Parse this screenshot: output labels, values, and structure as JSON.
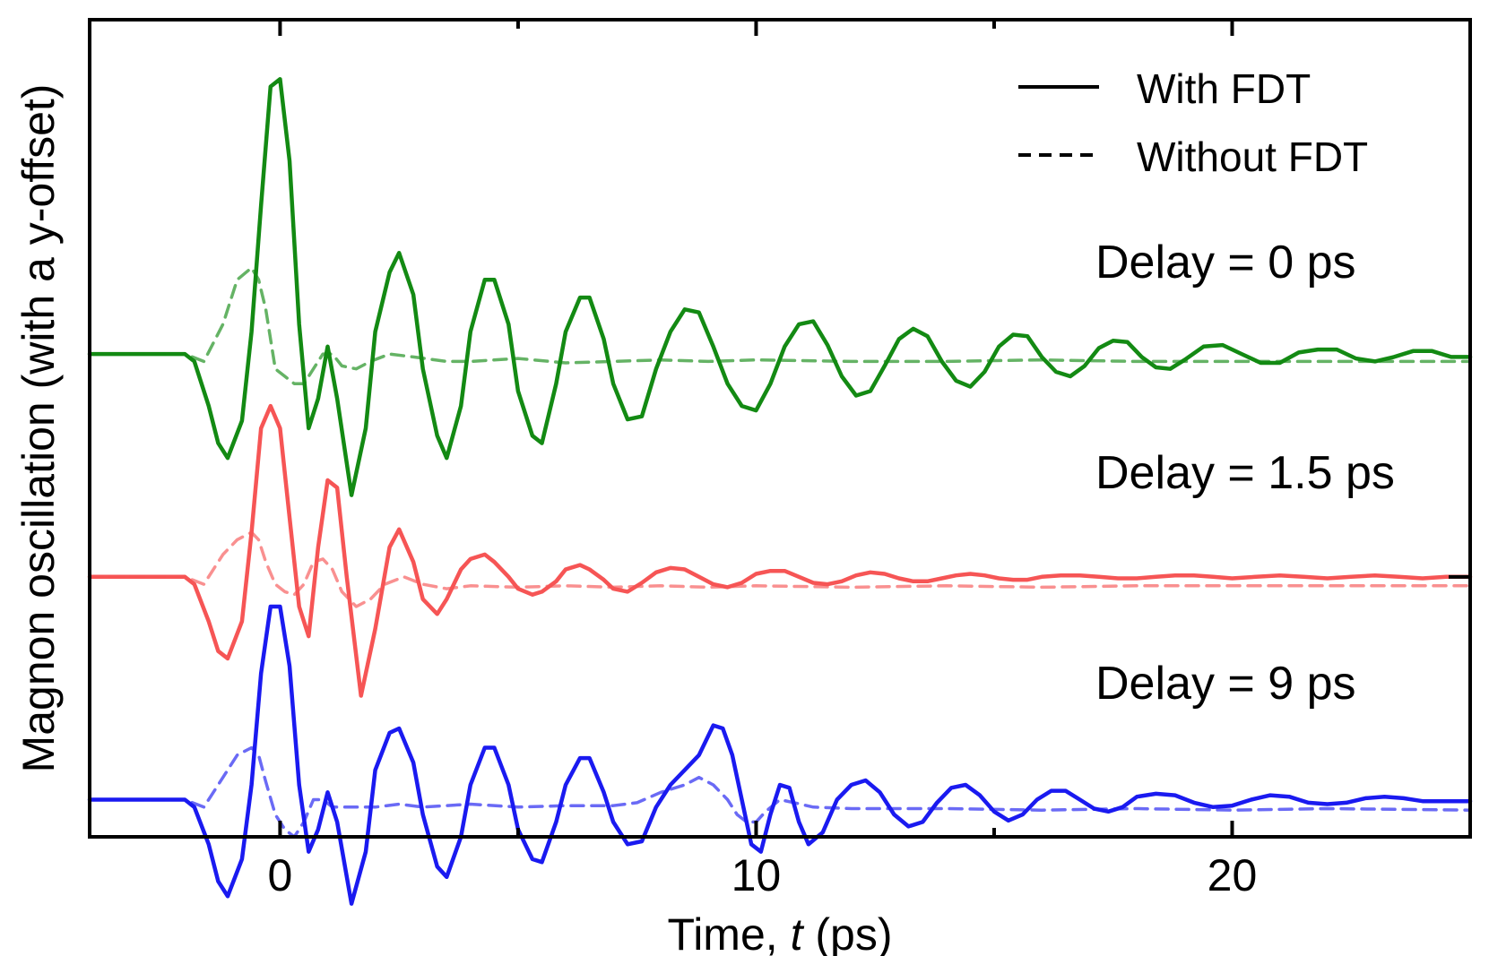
{
  "chart_data": {
    "type": "line",
    "title": "",
    "xlabel": "Time, ",
    "xlabel_var": "t",
    "xlabel_unit": " (ps)",
    "ylabel": "Magnon oscillation (with a y-offset)",
    "xlim": [
      -4,
      25
    ],
    "ylim": [
      -3.25,
      2.25
    ],
    "x_ticks": [
      0,
      10,
      20
    ],
    "x_tick_labels": [
      "0",
      "10",
      "20"
    ],
    "minor_x_ticks": [
      5,
      15
    ],
    "grid": false,
    "legend_position": "top-right",
    "legend": [
      {
        "label": "With FDT",
        "style": "solid"
      },
      {
        "label": "Without FDT",
        "style": "dashed"
      }
    ],
    "colors": {
      "delay_0": "#138a13",
      "delay_1_5": "#f65555",
      "delay_9": "#1a1af0"
    },
    "series": [
      {
        "group": "Delay = 0 ps",
        "style": "solid",
        "offset": 0.0,
        "delay": 0,
        "x": [
          -4,
          -2,
          -1.8,
          -1.5,
          -1.3,
          -1.1,
          -0.8,
          -0.6,
          -0.4,
          -0.2,
          0,
          0.2,
          0.4,
          0.6,
          0.8,
          1.0,
          1.2,
          1.5,
          1.8,
          2.0,
          2.3,
          2.5,
          2.8,
          3.0,
          3.3,
          3.5,
          3.8,
          4.0,
          4.3,
          4.5,
          4.8,
          5.0,
          5.3,
          5.5,
          5.8,
          6.0,
          6.3,
          6.5,
          6.8,
          7.0,
          7.3,
          7.6,
          7.9,
          8.2,
          8.5,
          8.8,
          9.1,
          9.4,
          9.7,
          10,
          10.3,
          10.6,
          10.9,
          11.2,
          11.5,
          11.8,
          12.1,
          12.4,
          12.7,
          13,
          13.3,
          13.6,
          13.9,
          14.2,
          14.5,
          14.8,
          15.1,
          15.4,
          15.7,
          16,
          16.3,
          16.6,
          16.9,
          17.2,
          17.5,
          17.8,
          18.1,
          18.4,
          18.7,
          19,
          19.4,
          19.8,
          20.2,
          20.6,
          21,
          21.4,
          21.8,
          22.2,
          22.6,
          23,
          23.4,
          23.8,
          24.2,
          24.6,
          25
        ],
        "y": [
          0,
          0,
          -0.05,
          -0.35,
          -0.6,
          -0.7,
          -0.45,
          0.15,
          1.0,
          1.8,
          1.85,
          1.3,
          0.2,
          -0.5,
          -0.3,
          0.05,
          -0.3,
          -0.95,
          -0.5,
          0.15,
          0.55,
          0.68,
          0.4,
          -0.1,
          -0.55,
          -0.7,
          -0.35,
          0.15,
          0.5,
          0.5,
          0.2,
          -0.25,
          -0.55,
          -0.6,
          -0.2,
          0.15,
          0.38,
          0.38,
          0.1,
          -0.2,
          -0.44,
          -0.42,
          -0.1,
          0.15,
          0.3,
          0.28,
          0.05,
          -0.2,
          -0.35,
          -0.38,
          -0.2,
          0.05,
          0.2,
          0.22,
          0.06,
          -0.15,
          -0.28,
          -0.25,
          -0.08,
          0.1,
          0.17,
          0.12,
          -0.05,
          -0.18,
          -0.22,
          -0.12,
          0.05,
          0.13,
          0.12,
          -0.02,
          -0.12,
          -0.15,
          -0.08,
          0.04,
          0.09,
          0.08,
          -0.02,
          -0.09,
          -0.1,
          -0.04,
          0.05,
          0.06,
          0,
          -0.06,
          -0.06,
          0.01,
          0.03,
          0.03,
          -0.03,
          -0.05,
          -0.02,
          0.02,
          0.02,
          -0.02,
          -0.02
        ]
      },
      {
        "group": "Delay = 0 ps",
        "style": "dashed",
        "offset": 0.0,
        "delay": 0,
        "x": [
          -4,
          -2,
          -1.6,
          -1.2,
          -0.9,
          -0.6,
          -0.45,
          -0.3,
          -0.1,
          0.1,
          0.3,
          0.5,
          0.7,
          0.9,
          1.1,
          1.3,
          1.6,
          1.9,
          2.3,
          2.8,
          3.5,
          4,
          5,
          6,
          7,
          8,
          9,
          10,
          12,
          14,
          16,
          18,
          20,
          22,
          25
        ],
        "y": [
          0,
          0,
          -0.05,
          0.2,
          0.5,
          0.58,
          0.5,
          0.3,
          -0.1,
          -0.15,
          -0.2,
          -0.2,
          -0.1,
          0.0,
          0.0,
          -0.08,
          -0.1,
          -0.05,
          0.0,
          -0.02,
          -0.05,
          -0.05,
          -0.03,
          -0.06,
          -0.05,
          -0.04,
          -0.05,
          -0.04,
          -0.05,
          -0.05,
          -0.04,
          -0.05,
          -0.05,
          -0.05,
          -0.05
        ]
      },
      {
        "group": "Delay = 1.5 ps",
        "style": "solid",
        "offset": -1.5,
        "delay": 1.5,
        "x": [
          -4,
          -2,
          -1.8,
          -1.5,
          -1.3,
          -1.1,
          -0.8,
          -0.6,
          -0.4,
          -0.2,
          0,
          0.2,
          0.4,
          0.6,
          0.8,
          1.0,
          1.2,
          1.4,
          1.7,
          2.0,
          2.3,
          2.5,
          2.8,
          3.0,
          3.3,
          3.5,
          3.8,
          4.0,
          4.3,
          4.5,
          4.8,
          5.0,
          5.3,
          5.5,
          5.8,
          6.0,
          6.3,
          6.5,
          6.8,
          7.0,
          7.3,
          7.6,
          7.9,
          8.2,
          8.5,
          8.8,
          9.1,
          9.4,
          9.7,
          10,
          10.3,
          10.6,
          10.9,
          11.2,
          11.5,
          11.8,
          12.1,
          12.4,
          12.7,
          13,
          13.3,
          13.6,
          13.9,
          14.2,
          14.5,
          14.8,
          15.1,
          15.4,
          15.7,
          16,
          16.4,
          16.8,
          17.2,
          17.6,
          18,
          18.4,
          18.8,
          19.2,
          19.6,
          20,
          20.5,
          21,
          21.5,
          22,
          22.5,
          23,
          23.5,
          24,
          24.5,
          25
        ],
        "y": [
          0,
          0,
          -0.05,
          -0.3,
          -0.5,
          -0.55,
          -0.3,
          0.3,
          1.0,
          1.15,
          1.0,
          0.4,
          -0.2,
          -0.4,
          0.2,
          0.65,
          0.6,
          0.0,
          -0.8,
          -0.35,
          0.2,
          0.32,
          0.1,
          -0.15,
          -0.25,
          -0.15,
          0.05,
          0.12,
          0.15,
          0.1,
          0.0,
          -0.08,
          -0.12,
          -0.1,
          -0.03,
          0.05,
          0.08,
          0.05,
          -0.02,
          -0.08,
          -0.1,
          -0.04,
          0.03,
          0.06,
          0.05,
          0.0,
          -0.05,
          -0.07,
          -0.04,
          0.02,
          0.04,
          0.04,
          0.0,
          -0.04,
          -0.05,
          -0.03,
          0.01,
          0.03,
          0.02,
          -0.01,
          -0.03,
          -0.03,
          -0.01,
          0.01,
          0.02,
          0.01,
          -0.01,
          -0.02,
          -0.02,
          0,
          0.01,
          0.01,
          0,
          -0.01,
          -0.01,
          0,
          0.01,
          0.01,
          0,
          -0.01,
          0,
          0.01,
          0,
          -0.01,
          0,
          0.01,
          0,
          -0.01,
          0,
          0
        ]
      },
      {
        "group": "Delay = 1.5 ps",
        "style": "dashed",
        "offset": -1.5,
        "delay": 1.5,
        "x": [
          -4,
          -2,
          -1.6,
          -1.2,
          -0.9,
          -0.6,
          -0.45,
          -0.3,
          -0.1,
          0.1,
          0.3,
          0.5,
          0.7,
          0.9,
          1.1,
          1.3,
          1.6,
          1.9,
          2.2,
          2.6,
          3,
          3.5,
          4,
          5,
          6,
          7,
          8,
          9,
          10,
          12,
          14,
          16,
          18,
          20,
          22,
          25
        ],
        "y": [
          0,
          0,
          -0.05,
          0.15,
          0.25,
          0.3,
          0.25,
          0.1,
          -0.05,
          -0.1,
          -0.12,
          -0.05,
          0.1,
          0.12,
          0.05,
          -0.1,
          -0.2,
          -0.15,
          -0.05,
          0.0,
          -0.05,
          -0.08,
          -0.06,
          -0.07,
          -0.06,
          -0.07,
          -0.06,
          -0.07,
          -0.06,
          -0.07,
          -0.06,
          -0.07,
          -0.06,
          -0.06,
          -0.06,
          -0.06
        ]
      },
      {
        "group": "Delay = 9 ps",
        "style": "solid",
        "offset": -3.0,
        "delay": 9,
        "x": [
          -4,
          -2,
          -1.8,
          -1.5,
          -1.3,
          -1.1,
          -0.8,
          -0.6,
          -0.4,
          -0.2,
          0,
          0.2,
          0.4,
          0.6,
          0.8,
          1.0,
          1.2,
          1.5,
          1.8,
          2.0,
          2.3,
          2.5,
          2.8,
          3.0,
          3.3,
          3.5,
          3.8,
          4.0,
          4.3,
          4.5,
          4.8,
          5.0,
          5.3,
          5.5,
          5.8,
          6.0,
          6.3,
          6.5,
          6.8,
          7.0,
          7.3,
          7.6,
          7.9,
          8.2,
          8.5,
          8.8,
          9.1,
          9.3,
          9.5,
          9.7,
          9.9,
          10.1,
          10.3,
          10.5,
          10.7,
          10.9,
          11.1,
          11.4,
          11.7,
          12,
          12.3,
          12.6,
          12.9,
          13.2,
          13.5,
          13.8,
          14.1,
          14.4,
          14.7,
          15,
          15.3,
          15.6,
          15.9,
          16.2,
          16.5,
          16.8,
          17.1,
          17.4,
          17.7,
          18,
          18.4,
          18.8,
          19.2,
          19.6,
          20,
          20.4,
          20.8,
          21.2,
          21.6,
          22,
          22.4,
          22.8,
          23.2,
          23.6,
          24,
          24.5,
          25
        ],
        "y": [
          0,
          0,
          -0.05,
          -0.3,
          -0.55,
          -0.65,
          -0.4,
          0.1,
          0.85,
          1.3,
          1.3,
          0.9,
          0.1,
          -0.35,
          -0.2,
          0.05,
          -0.15,
          -0.7,
          -0.35,
          0.2,
          0.45,
          0.48,
          0.25,
          -0.1,
          -0.45,
          -0.52,
          -0.25,
          0.1,
          0.35,
          0.35,
          0.1,
          -0.2,
          -0.4,
          -0.42,
          -0.15,
          0.1,
          0.28,
          0.28,
          0.05,
          -0.15,
          -0.3,
          -0.28,
          -0.05,
          0.1,
          0.2,
          0.3,
          0.5,
          0.48,
          0.3,
          0.0,
          -0.3,
          -0.35,
          -0.1,
          0.1,
          0.08,
          -0.15,
          -0.3,
          -0.22,
          0.0,
          0.1,
          0.13,
          0.05,
          -0.1,
          -0.18,
          -0.15,
          -0.02,
          0.08,
          0.1,
          0.03,
          -0.08,
          -0.14,
          -0.1,
          0.0,
          0.06,
          0.06,
          0.0,
          -0.06,
          -0.08,
          -0.05,
          0.02,
          0.04,
          0.03,
          -0.02,
          -0.05,
          -0.04,
          0.0,
          0.03,
          0.02,
          -0.02,
          -0.03,
          -0.02,
          0.01,
          0.02,
          0.01,
          -0.01,
          -0.01,
          -0.01
        ]
      },
      {
        "group": "Delay = 9 ps",
        "style": "dashed",
        "offset": -3.0,
        "delay": 9,
        "x": [
          -4,
          -2,
          -1.6,
          -1.2,
          -0.9,
          -0.6,
          -0.45,
          -0.3,
          -0.1,
          0.1,
          0.3,
          0.5,
          0.7,
          0.9,
          1.1,
          1.3,
          1.6,
          2,
          2.5,
          3,
          4,
          5,
          6,
          7,
          7.5,
          8,
          8.5,
          8.8,
          9.1,
          9.4,
          9.6,
          9.8,
          10,
          10.2,
          10.5,
          10.8,
          11.2,
          12,
          13,
          14,
          16,
          18,
          20,
          22,
          25
        ],
        "y": [
          0,
          0,
          -0.05,
          0.15,
          0.3,
          0.35,
          0.3,
          0.12,
          -0.1,
          -0.2,
          -0.25,
          -0.15,
          0.0,
          0.0,
          -0.05,
          -0.05,
          -0.05,
          -0.05,
          -0.03,
          -0.05,
          -0.03,
          -0.05,
          -0.04,
          -0.04,
          -0.02,
          0.05,
          0.1,
          0.15,
          0.1,
          0.0,
          -0.1,
          -0.15,
          -0.15,
          -0.08,
          0.0,
          -0.02,
          -0.05,
          -0.06,
          -0.06,
          -0.06,
          -0.07,
          -0.06,
          -0.07,
          -0.06,
          -0.07
        ]
      }
    ],
    "annotations": [
      {
        "text": "Delay = 0 ps"
      },
      {
        "text": "Delay = 1.5 ps"
      },
      {
        "text": "Delay = 9 ps"
      }
    ]
  }
}
